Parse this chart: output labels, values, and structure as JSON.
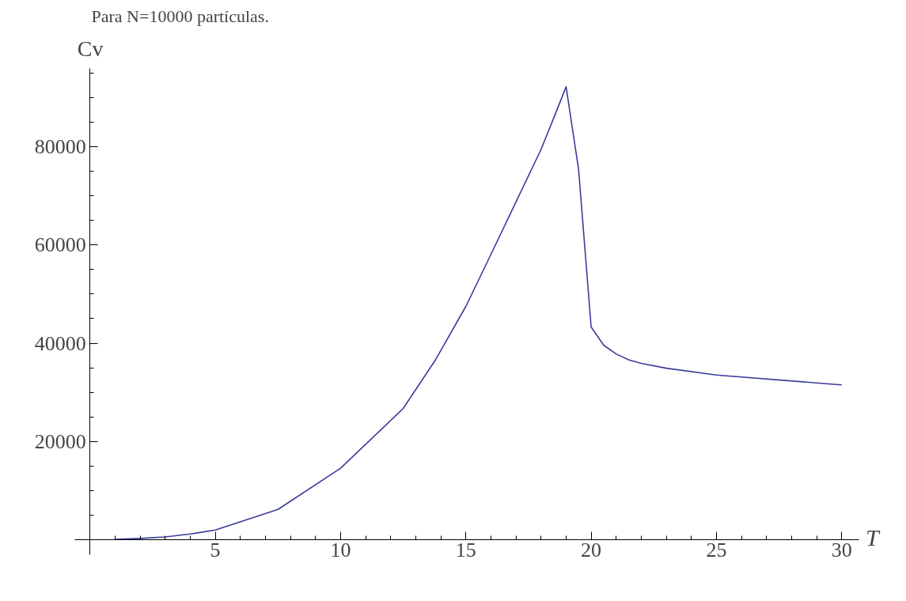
{
  "chart_data": {
    "type": "line",
    "title": "Para N=10000 partículas.",
    "xlabel": "T",
    "ylabel": "Cv",
    "x": [
      1,
      2,
      3,
      4,
      5,
      7.5,
      10,
      12.5,
      13.8,
      15,
      16,
      17,
      18,
      18.6,
      19,
      19.5,
      20,
      20.5,
      21,
      21.5,
      22,
      23,
      25,
      30
    ],
    "series": [
      {
        "color": "#3b3b9c",
        "values": [
          0,
          200,
          500,
          1100,
          1900,
          6100,
          14500,
          26700,
          36700,
          47500,
          58100,
          68800,
          79500,
          87100,
          92300,
          75400,
          43300,
          39600,
          37800,
          36600,
          35900,
          34900,
          33500,
          31500
        ]
      }
    ],
    "xlim": [
      -0.6,
      30.7
    ],
    "ylim": [
      -3100,
      96000
    ],
    "xticks": [
      5,
      10,
      15,
      20,
      25,
      30
    ],
    "yticks": [
      20000,
      40000,
      60000,
      80000
    ],
    "grid": false,
    "marker": "none",
    "line_style": "solid"
  }
}
